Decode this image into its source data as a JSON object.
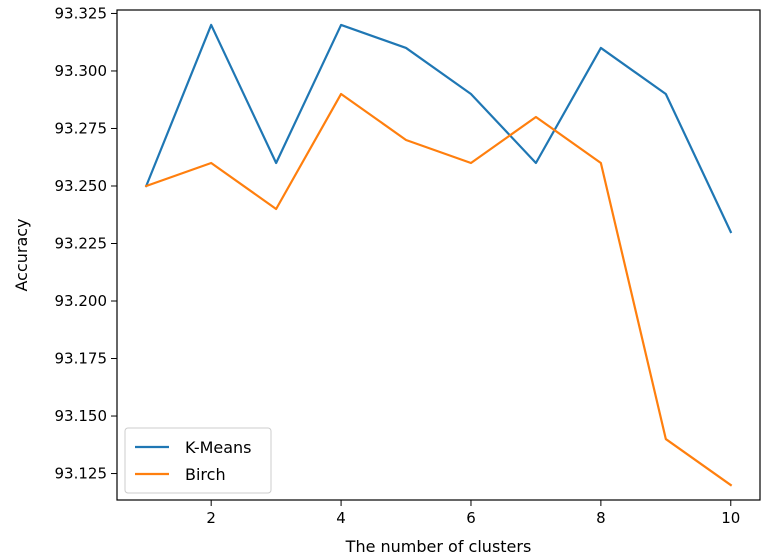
{
  "chart_data": {
    "type": "line",
    "title": "",
    "xlabel": "The number of clusters",
    "ylabel": "Accuracy",
    "x": [
      1,
      2,
      3,
      4,
      5,
      6,
      7,
      8,
      9,
      10
    ],
    "xlim": [
      0.55,
      10.45
    ],
    "ylim": [
      93.1135,
      93.3265
    ],
    "xticks": [
      2,
      4,
      6,
      8,
      10
    ],
    "xtick_labels": [
      "2",
      "4",
      "6",
      "8",
      "10"
    ],
    "yticks": [
      93.125,
      93.15,
      93.175,
      93.2,
      93.225,
      93.25,
      93.275,
      93.3,
      93.325
    ],
    "ytick_labels": [
      "93.125",
      "93.150",
      "93.175",
      "93.200",
      "93.225",
      "93.250",
      "93.275",
      "93.300",
      "93.325"
    ],
    "grid": false,
    "legend_position": "lower-left",
    "series": [
      {
        "name": "K-Means",
        "color": "#1f77b4",
        "values": [
          93.25,
          93.32,
          93.26,
          93.32,
          93.31,
          93.29,
          93.26,
          93.31,
          93.29,
          93.23
        ]
      },
      {
        "name": "Birch",
        "color": "#ff7f0e",
        "values": [
          93.25,
          93.26,
          93.24,
          93.29,
          93.27,
          93.26,
          93.28,
          93.26,
          93.14,
          93.12
        ]
      }
    ]
  }
}
